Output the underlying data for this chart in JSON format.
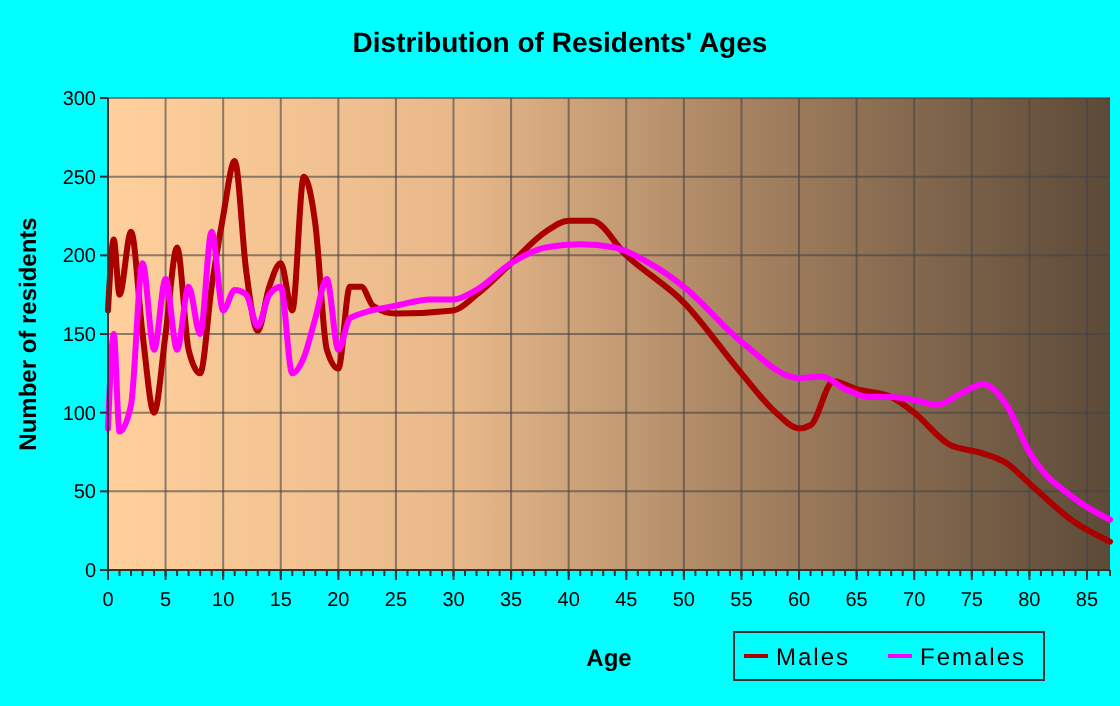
{
  "chart_data": {
    "type": "line",
    "title": "Distribution of Residents' Ages",
    "xlabel": "Age",
    "ylabel": "Number of residents",
    "xlim": [
      0,
      87
    ],
    "xticks": [
      0,
      5,
      10,
      15,
      20,
      25,
      30,
      35,
      40,
      45,
      50,
      55,
      60,
      65,
      70,
      75,
      80,
      85
    ],
    "ylim": [
      0,
      300
    ],
    "yticks": [
      0,
      50,
      100,
      150,
      200,
      250,
      300
    ],
    "grid": true,
    "legend": "bottom right",
    "series": [
      {
        "name": "Males",
        "color": "#aa0000",
        "x": [
          0,
          0.5,
          1,
          2,
          3,
          4,
          5,
          6,
          7,
          8,
          9,
          10,
          11,
          12,
          13,
          14,
          15,
          16,
          17,
          18,
          19,
          20,
          21,
          22,
          23,
          25,
          30,
          32,
          35,
          38,
          40,
          42,
          45,
          50,
          55,
          58,
          60,
          61,
          63,
          65,
          68,
          70,
          73,
          76,
          78,
          80,
          84,
          87
        ],
        "values": [
          165,
          210,
          175,
          215,
          150,
          100,
          150,
          205,
          140,
          125,
          180,
          225,
          260,
          190,
          152,
          180,
          195,
          165,
          250,
          220,
          140,
          128,
          180,
          180,
          168,
          163,
          165,
          175,
          195,
          215,
          222,
          222,
          200,
          170,
          125,
          100,
          90,
          92,
          120,
          115,
          110,
          100,
          80,
          74,
          68,
          55,
          30,
          18
        ]
      },
      {
        "name": "Females",
        "color": "#ff00ff",
        "x": [
          0,
          0.5,
          1,
          2,
          3,
          4,
          5,
          6,
          7,
          8,
          9,
          10,
          11,
          12,
          13,
          14,
          15,
          16,
          17,
          18,
          19,
          20,
          21,
          22,
          25,
          28,
          30,
          32,
          35,
          38,
          41,
          44,
          47,
          50,
          55,
          60,
          62,
          64,
          66,
          68,
          70,
          72,
          74,
          76,
          78,
          80,
          84,
          87
        ],
        "values": [
          90,
          150,
          88,
          105,
          195,
          140,
          185,
          140,
          180,
          150,
          215,
          165,
          178,
          175,
          155,
          175,
          180,
          125,
          135,
          160,
          185,
          140,
          160,
          163,
          168,
          172,
          172,
          178,
          195,
          205,
          207,
          205,
          195,
          180,
          145,
          122,
          123,
          115,
          110,
          110,
          108,
          105,
          112,
          118,
          105,
          75,
          45,
          32
        ]
      }
    ]
  }
}
